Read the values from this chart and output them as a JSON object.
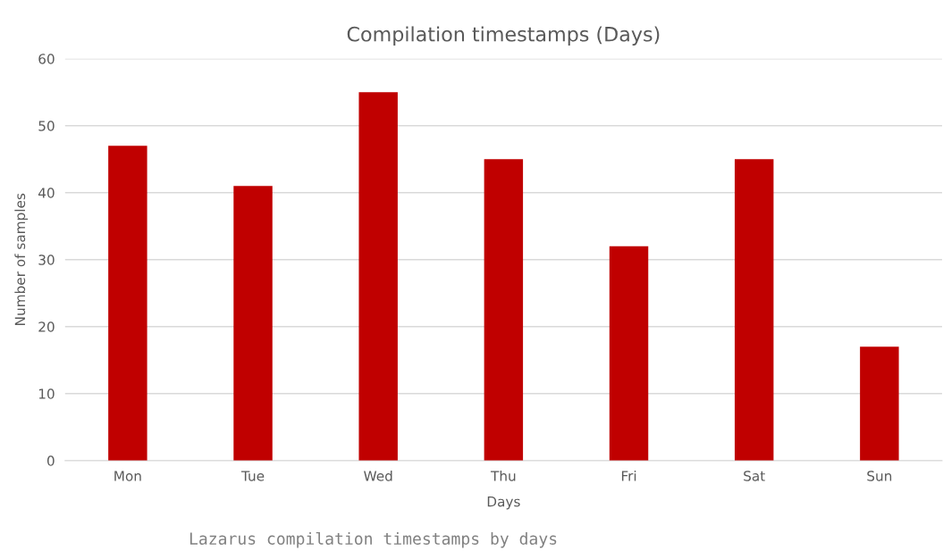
{
  "chart_data": {
    "type": "bar",
    "title": "Compilation timestamps (Days)",
    "xlabel": "Days",
    "ylabel": "Number of samples",
    "categories": [
      "Mon",
      "Tue",
      "Wed",
      "Thu",
      "Fri",
      "Sat",
      "Sun"
    ],
    "values": [
      47,
      41,
      55,
      45,
      32,
      45,
      17
    ],
    "color": "#c00000",
    "ylim": [
      0,
      60
    ],
    "yticks": [
      0,
      10,
      20,
      30,
      40,
      50,
      60
    ],
    "grid": "y",
    "legend": false,
    "annotations": [
      "Lazarus compilation timestamps by days"
    ]
  }
}
